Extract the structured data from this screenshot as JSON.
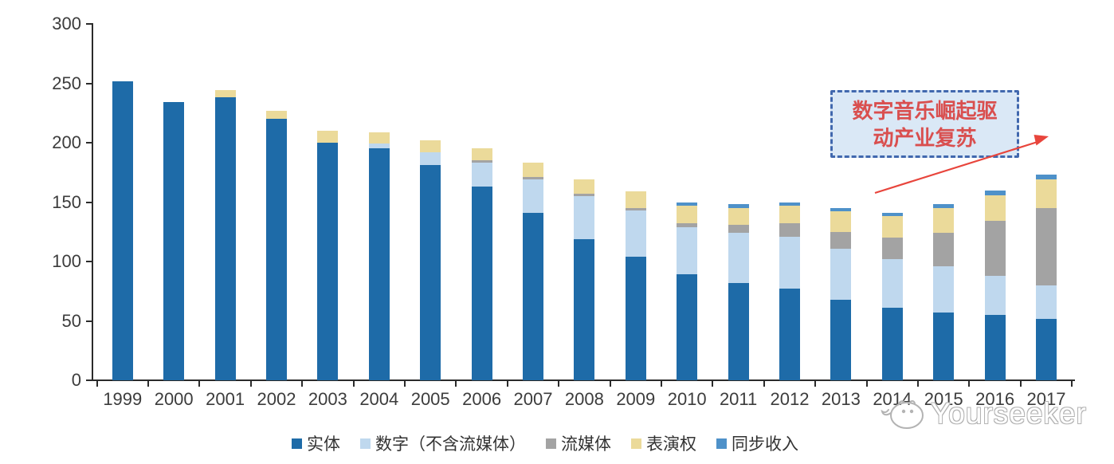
{
  "chart_data": {
    "type": "bar",
    "stacked": true,
    "categories": [
      "1999",
      "2000",
      "2001",
      "2002",
      "2003",
      "2004",
      "2005",
      "2006",
      "2007",
      "2008",
      "2009",
      "2010",
      "2011",
      "2012",
      "2013",
      "2014",
      "2015",
      "2016",
      "2017"
    ],
    "series": [
      {
        "name": "实体",
        "color": "#1E6BA8",
        "values": [
          252,
          234,
          238,
          220,
          200,
          195,
          181,
          163,
          141,
          119,
          104,
          89,
          82,
          77,
          68,
          61,
          57,
          55,
          52
        ]
      },
      {
        "name": "数字（不含流媒体）",
        "color": "#BFD8EE",
        "values": [
          0,
          0,
          0,
          0,
          0,
          4,
          11,
          20,
          28,
          36,
          39,
          40,
          42,
          44,
          43,
          41,
          39,
          33,
          28
        ]
      },
      {
        "name": "流媒体",
        "color": "#A3A3A3",
        "values": [
          0,
          0,
          0,
          0,
          0,
          0,
          0,
          2,
          2,
          2,
          2,
          3,
          7,
          11,
          14,
          18,
          28,
          46,
          65
        ]
      },
      {
        "name": "表演权",
        "color": "#EBDA9A",
        "values": [
          0,
          0,
          6,
          7,
          10,
          10,
          10,
          10,
          12,
          12,
          14,
          15,
          14,
          15,
          17,
          18,
          21,
          22,
          24
        ]
      },
      {
        "name": "同步收入",
        "color": "#4E91C9",
        "values": [
          0,
          0,
          0,
          0,
          0,
          0,
          0,
          0,
          0,
          0,
          0,
          3,
          3,
          3,
          3,
          3,
          3,
          4,
          4
        ]
      }
    ],
    "ylim": [
      0,
      300
    ],
    "yticks": [
      0,
      50,
      100,
      150,
      200,
      250,
      300
    ],
    "grid": false,
    "legend_position": "bottom",
    "title": ""
  },
  "annotation": {
    "line1": "数字音乐崛起驱",
    "line2": "动产业复苏",
    "border_color": "#4168ae",
    "fill_color": "#dae8f6",
    "text_color": "#d94f4f",
    "arrow_color": "#e8453c"
  },
  "watermark": {
    "text": "Yourseeker"
  }
}
